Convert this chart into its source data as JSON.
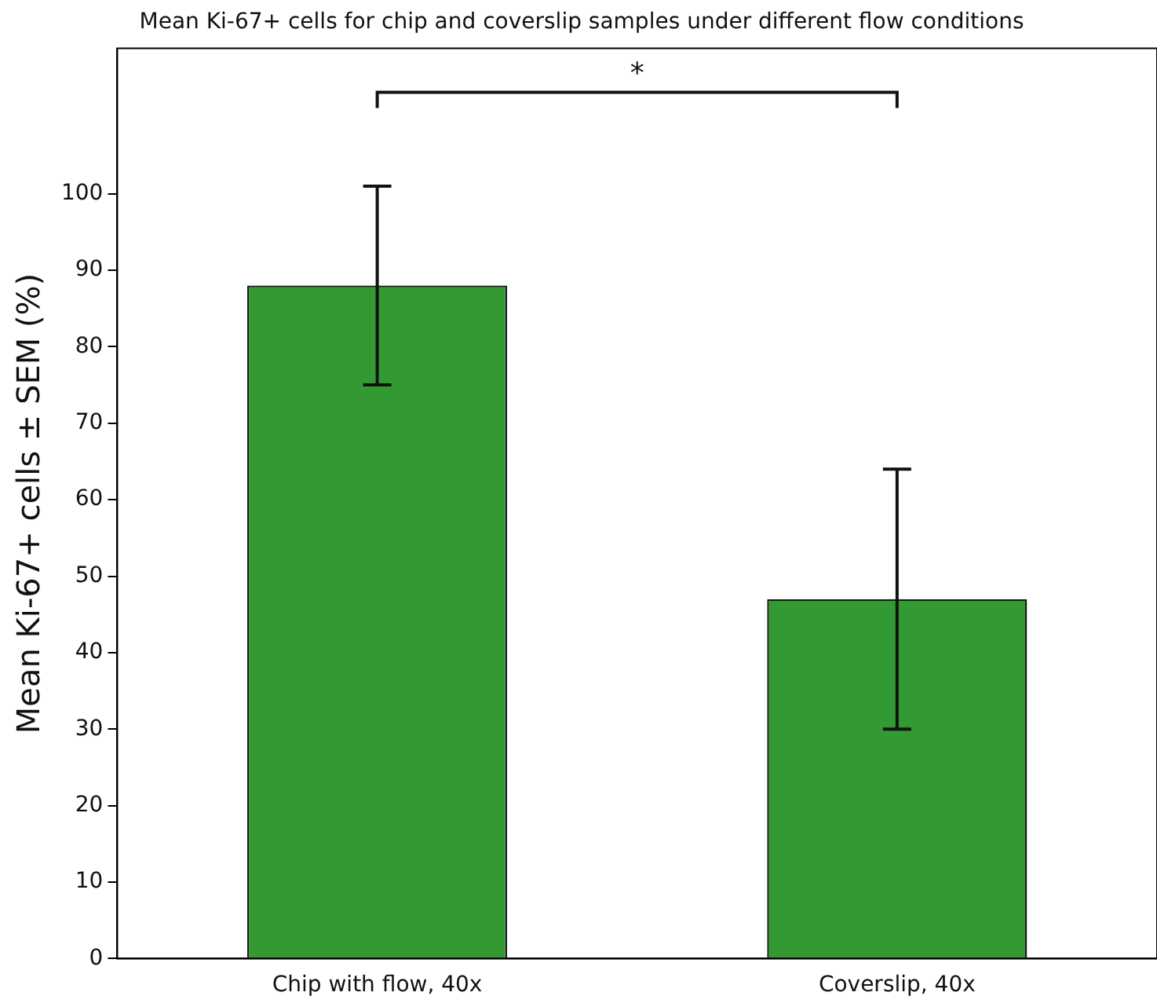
{
  "chart_data": {
    "type": "bar",
    "title": "Mean Ki-67+ cells for chip and coverslip samples under different flow conditions",
    "ylabel": "Mean Ki-67+ cells ± SEM (%)",
    "categories": [
      "Chip with flow, 40x",
      "Coverslip, 40x"
    ],
    "values": [
      88,
      47
    ],
    "errors": [
      13,
      17
    ],
    "color": "#339933",
    "ylim": [
      0,
      119
    ],
    "yticks": [
      0,
      10,
      20,
      30,
      40,
      50,
      60,
      70,
      80,
      90,
      100
    ],
    "annotations": [
      "*"
    ],
    "grid": false,
    "legend": false
  }
}
